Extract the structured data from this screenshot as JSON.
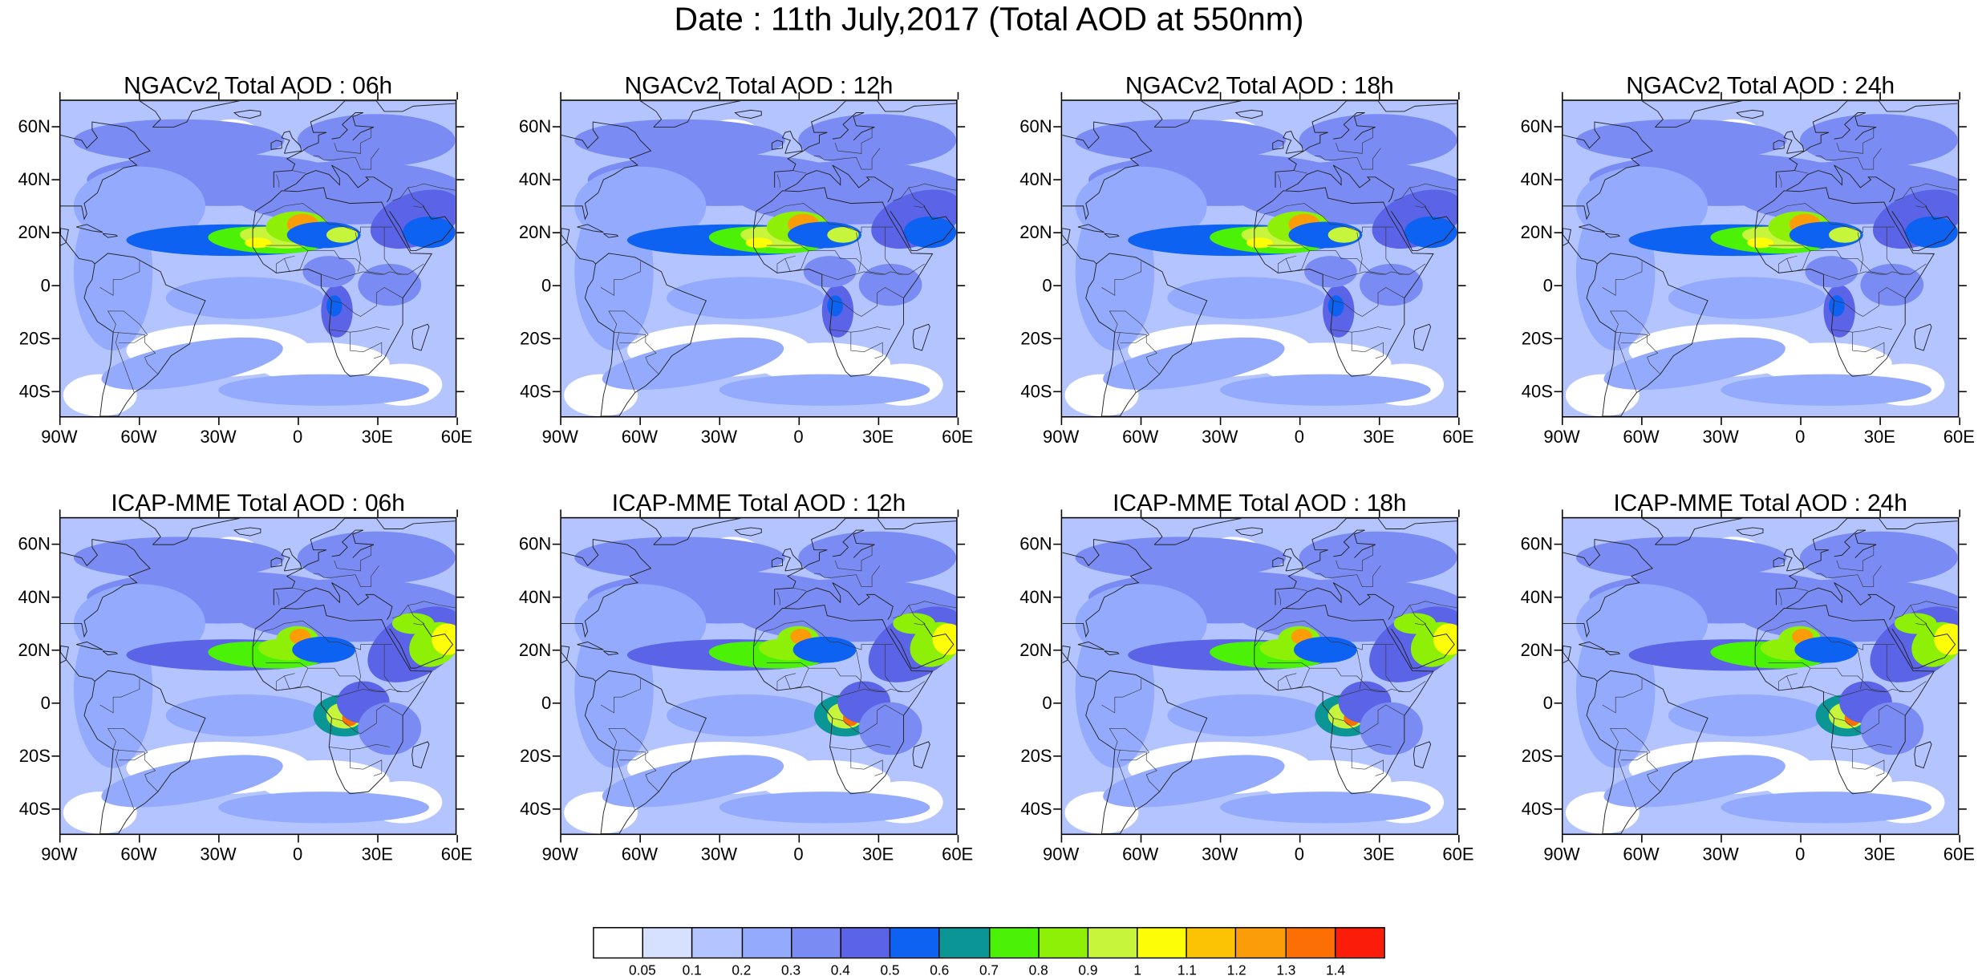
{
  "title": "Date : 11th July,2017 (Total AOD at 550nm)",
  "lat_labels": [
    "60N",
    "40N",
    "20N",
    "0",
    "20S",
    "40S"
  ],
  "lon_labels": [
    "90W",
    "60W",
    "30W",
    "0",
    "30E",
    "60E"
  ],
  "panels": [
    {
      "title": "NGACv2 Total AOD : 06h",
      "model": "NGACv2",
      "lead": "06h"
    },
    {
      "title": "NGACv2 Total AOD : 12h",
      "model": "NGACv2",
      "lead": "12h"
    },
    {
      "title": "NGACv2 Total AOD : 18h",
      "model": "NGACv2",
      "lead": "18h"
    },
    {
      "title": "NGACv2 Total AOD : 24h",
      "model": "NGACv2",
      "lead": "24h"
    },
    {
      "title": "ICAP-MME Total AOD : 06h",
      "model": "ICAP-MME",
      "lead": "06h"
    },
    {
      "title": "ICAP-MME Total AOD : 12h",
      "model": "ICAP-MME",
      "lead": "12h"
    },
    {
      "title": "ICAP-MME Total AOD : 18h",
      "model": "ICAP-MME",
      "lead": "18h"
    },
    {
      "title": "ICAP-MME Total AOD : 24h",
      "model": "ICAP-MME",
      "lead": "24h"
    }
  ],
  "colorbar": {
    "levels": [
      "0.05",
      "0.1",
      "0.2",
      "0.3",
      "0.4",
      "0.5",
      "0.6",
      "0.7",
      "0.8",
      "0.9",
      "1",
      "1.1",
      "1.2",
      "1.3",
      "1.4"
    ],
    "colors": [
      "#ffffff",
      "#d6e0ff",
      "#b3c4ff",
      "#93aafd",
      "#7a8cf4",
      "#5b63e6",
      "#0d62f2",
      "#0b9595",
      "#4bf107",
      "#8df006",
      "#c6f53b",
      "#fdfd08",
      "#fcc305",
      "#fb9c09",
      "#fb6f05",
      "#fb1c0a"
    ]
  },
  "chart_data": {
    "type": "heatmap",
    "variable": "Total AOD at 550nm",
    "date": "11th July,2017",
    "lon_range": [
      -90,
      60
    ],
    "lat_range": [
      -50,
      70
    ],
    "features": {
      "NGACv2": [
        {
          "name": "saharan-dust-core",
          "lon": 0,
          "lat": 23,
          "peak_aod": 1.35
        },
        {
          "name": "atlantic-dust-plume",
          "lon": -15,
          "lat": 17,
          "peak_aod": 1.0
        },
        {
          "name": "central-african-smoke",
          "lon": 15,
          "lat": -10,
          "peak_aod": 0.5
        }
      ],
      "ICAP-MME": [
        {
          "name": "saharan-dust-core",
          "lon": 0,
          "lat": 25,
          "peak_aod": 1.35
        },
        {
          "name": "atlantic-dust-plume",
          "lon": -15,
          "lat": 18,
          "peak_aod": 0.9
        },
        {
          "name": "central-african-smoke",
          "lon": 18,
          "lat": -5,
          "peak_aod": 1.3
        },
        {
          "name": "arabian-dust",
          "lon": 55,
          "lat": 20,
          "peak_aod": 1.0
        }
      ]
    }
  }
}
